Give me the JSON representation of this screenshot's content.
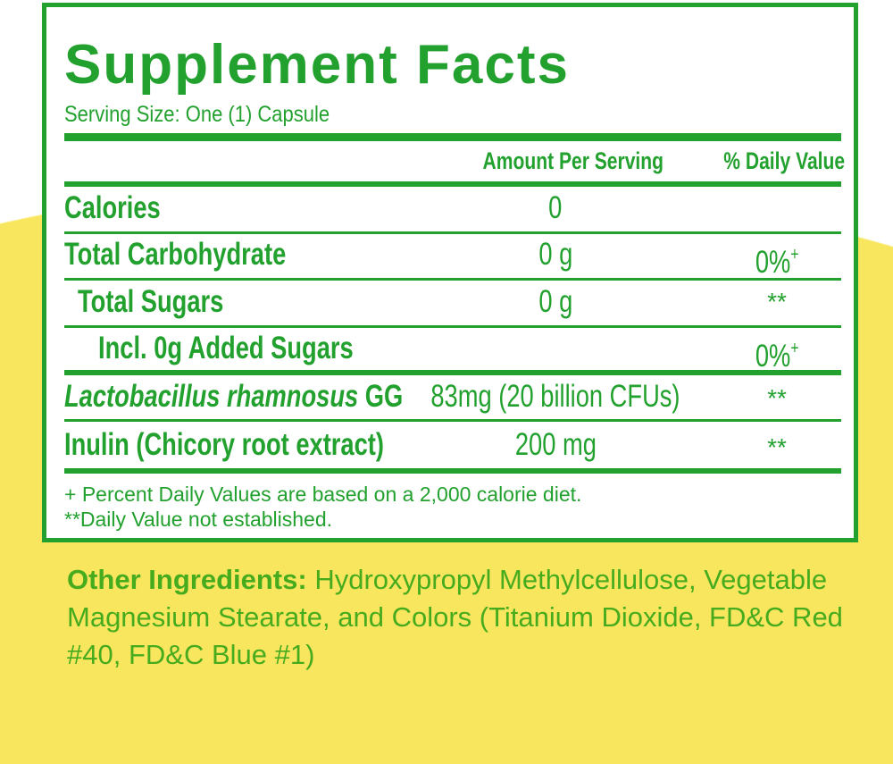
{
  "title": "Supplement Facts",
  "serving_size": "Serving Size: One (1) Capsule",
  "headers": {
    "amount": "Amount Per Serving",
    "daily_value": "% Daily Value"
  },
  "rows": [
    {
      "label": "Calories",
      "amount": "0",
      "dv": "",
      "dv_sup": ""
    },
    {
      "label": "Total Carbohydrate",
      "amount": "0 g",
      "dv": "0%",
      "dv_sup": "+"
    },
    {
      "label": "Total Sugars",
      "amount": "0 g",
      "dv": "**",
      "dv_sup": ""
    },
    {
      "label": "Incl. 0g Added Sugars",
      "amount": "",
      "dv": "0%",
      "dv_sup": "+"
    },
    {
      "label_italic": "Lactobacillus rhamnosus",
      "label": " GG",
      "amount": "83mg (20 billion CFUs)",
      "dv": "**",
      "dv_sup": ""
    },
    {
      "label": "Inulin (Chicory root extract)",
      "amount": "200 mg",
      "dv": "**",
      "dv_sup": ""
    }
  ],
  "footnotes": [
    "+ Percent Daily Values are based on a 2,000 calorie diet.",
    "**Daily Value not established."
  ],
  "other_ingredients": {
    "label": "Other Ingredients:",
    "text": " Hydroxypropyl Methylcellulose, Vegetable Magnesium Stearate, and Colors (Titanium Dioxide, FD&C Red #40, FD&C Blue #1)"
  },
  "colors": {
    "label_green": "#22a12e",
    "ingredients_green": "#47ab1e",
    "background_yellow": "#f8e65f"
  }
}
